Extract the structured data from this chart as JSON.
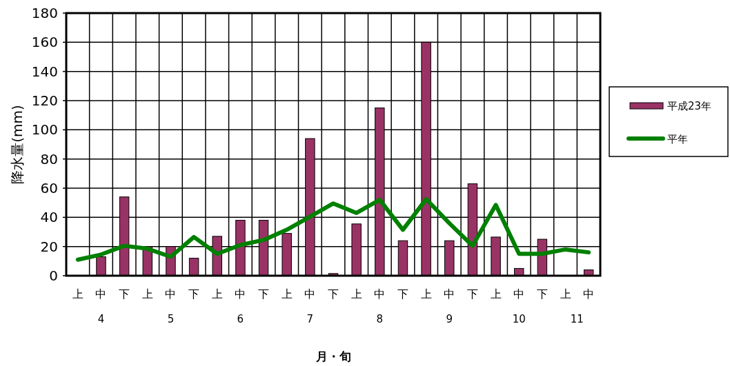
{
  "chart_data": {
    "type": "bar",
    "xlabel": "月・旬",
    "ylabel": "降水量(mm)",
    "categories": [
      "上",
      "中",
      "下",
      "上",
      "中",
      "下",
      "上",
      "中",
      "下",
      "上",
      "中",
      "下",
      "上",
      "中",
      "下",
      "上",
      "中",
      "下",
      "上",
      "中",
      "下",
      "上",
      "中"
    ],
    "series": [
      {
        "name": "平成23年",
        "color": "#993366",
        "values": [
          0,
          13,
          54,
          20,
          20,
          12,
          27,
          38,
          38,
          29,
          94,
          1.5,
          35.5,
          115,
          24,
          160,
          24,
          63,
          26.5,
          5,
          25,
          0,
          4
        ]
      },
      {
        "name": "平年",
        "type": "line",
        "color": "#008000",
        "values": [
          11,
          14.5,
          20.5,
          18.5,
          13,
          26.5,
          15,
          21,
          24.5,
          31.5,
          40.5,
          49.5,
          43,
          52,
          31.5,
          52.5,
          36,
          20.5,
          48.5,
          15,
          15,
          18,
          16
        ]
      }
    ],
    "annotations": [
      "4",
      "5",
      "6",
      "7",
      "8",
      "9",
      "10",
      "11"
    ],
    "ylim": [
      0,
      180
    ],
    "yticks": [
      0,
      20,
      40,
      60,
      80,
      100,
      120,
      140,
      160,
      180
    ],
    "grid": true,
    "legend": "right"
  }
}
